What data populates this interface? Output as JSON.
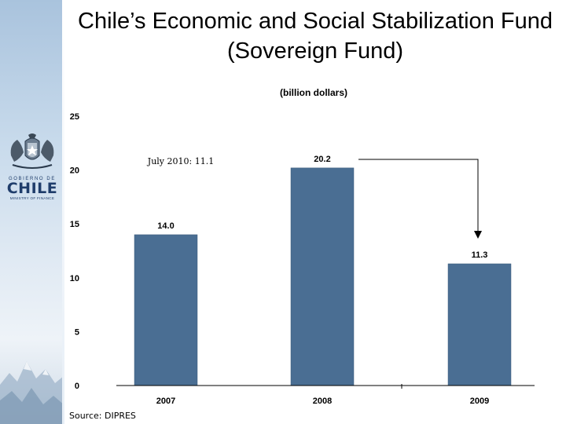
{
  "slide": {
    "title": "Chile’s Economic and Social Stabilization Fund (Sovereign Fund)",
    "source": "Source: DIPRES"
  },
  "logo": {
    "gobierno": "GOBIERNO DE",
    "chile": "CHILE",
    "ministry": "MINISTRY OF FINANCE"
  },
  "colors": {
    "bar": "#4a6e93",
    "axis": "#000000"
  },
  "chart_data": {
    "type": "bar",
    "subtitle": "(billion dollars)",
    "categories": [
      "2007",
      "2008",
      "2009"
    ],
    "values": [
      14.0,
      20.2,
      11.3
    ],
    "value_labels": [
      "14.0",
      "20.2",
      "11.3"
    ],
    "ylim": [
      0,
      25
    ],
    "yticks": [
      0,
      5,
      10,
      15,
      20,
      25
    ],
    "grid": false,
    "legend": "none",
    "annotations": [
      {
        "text": "July 2010: 11.1",
        "near": "2007"
      }
    ],
    "arrow": {
      "from": "2008",
      "to": "2009"
    }
  }
}
